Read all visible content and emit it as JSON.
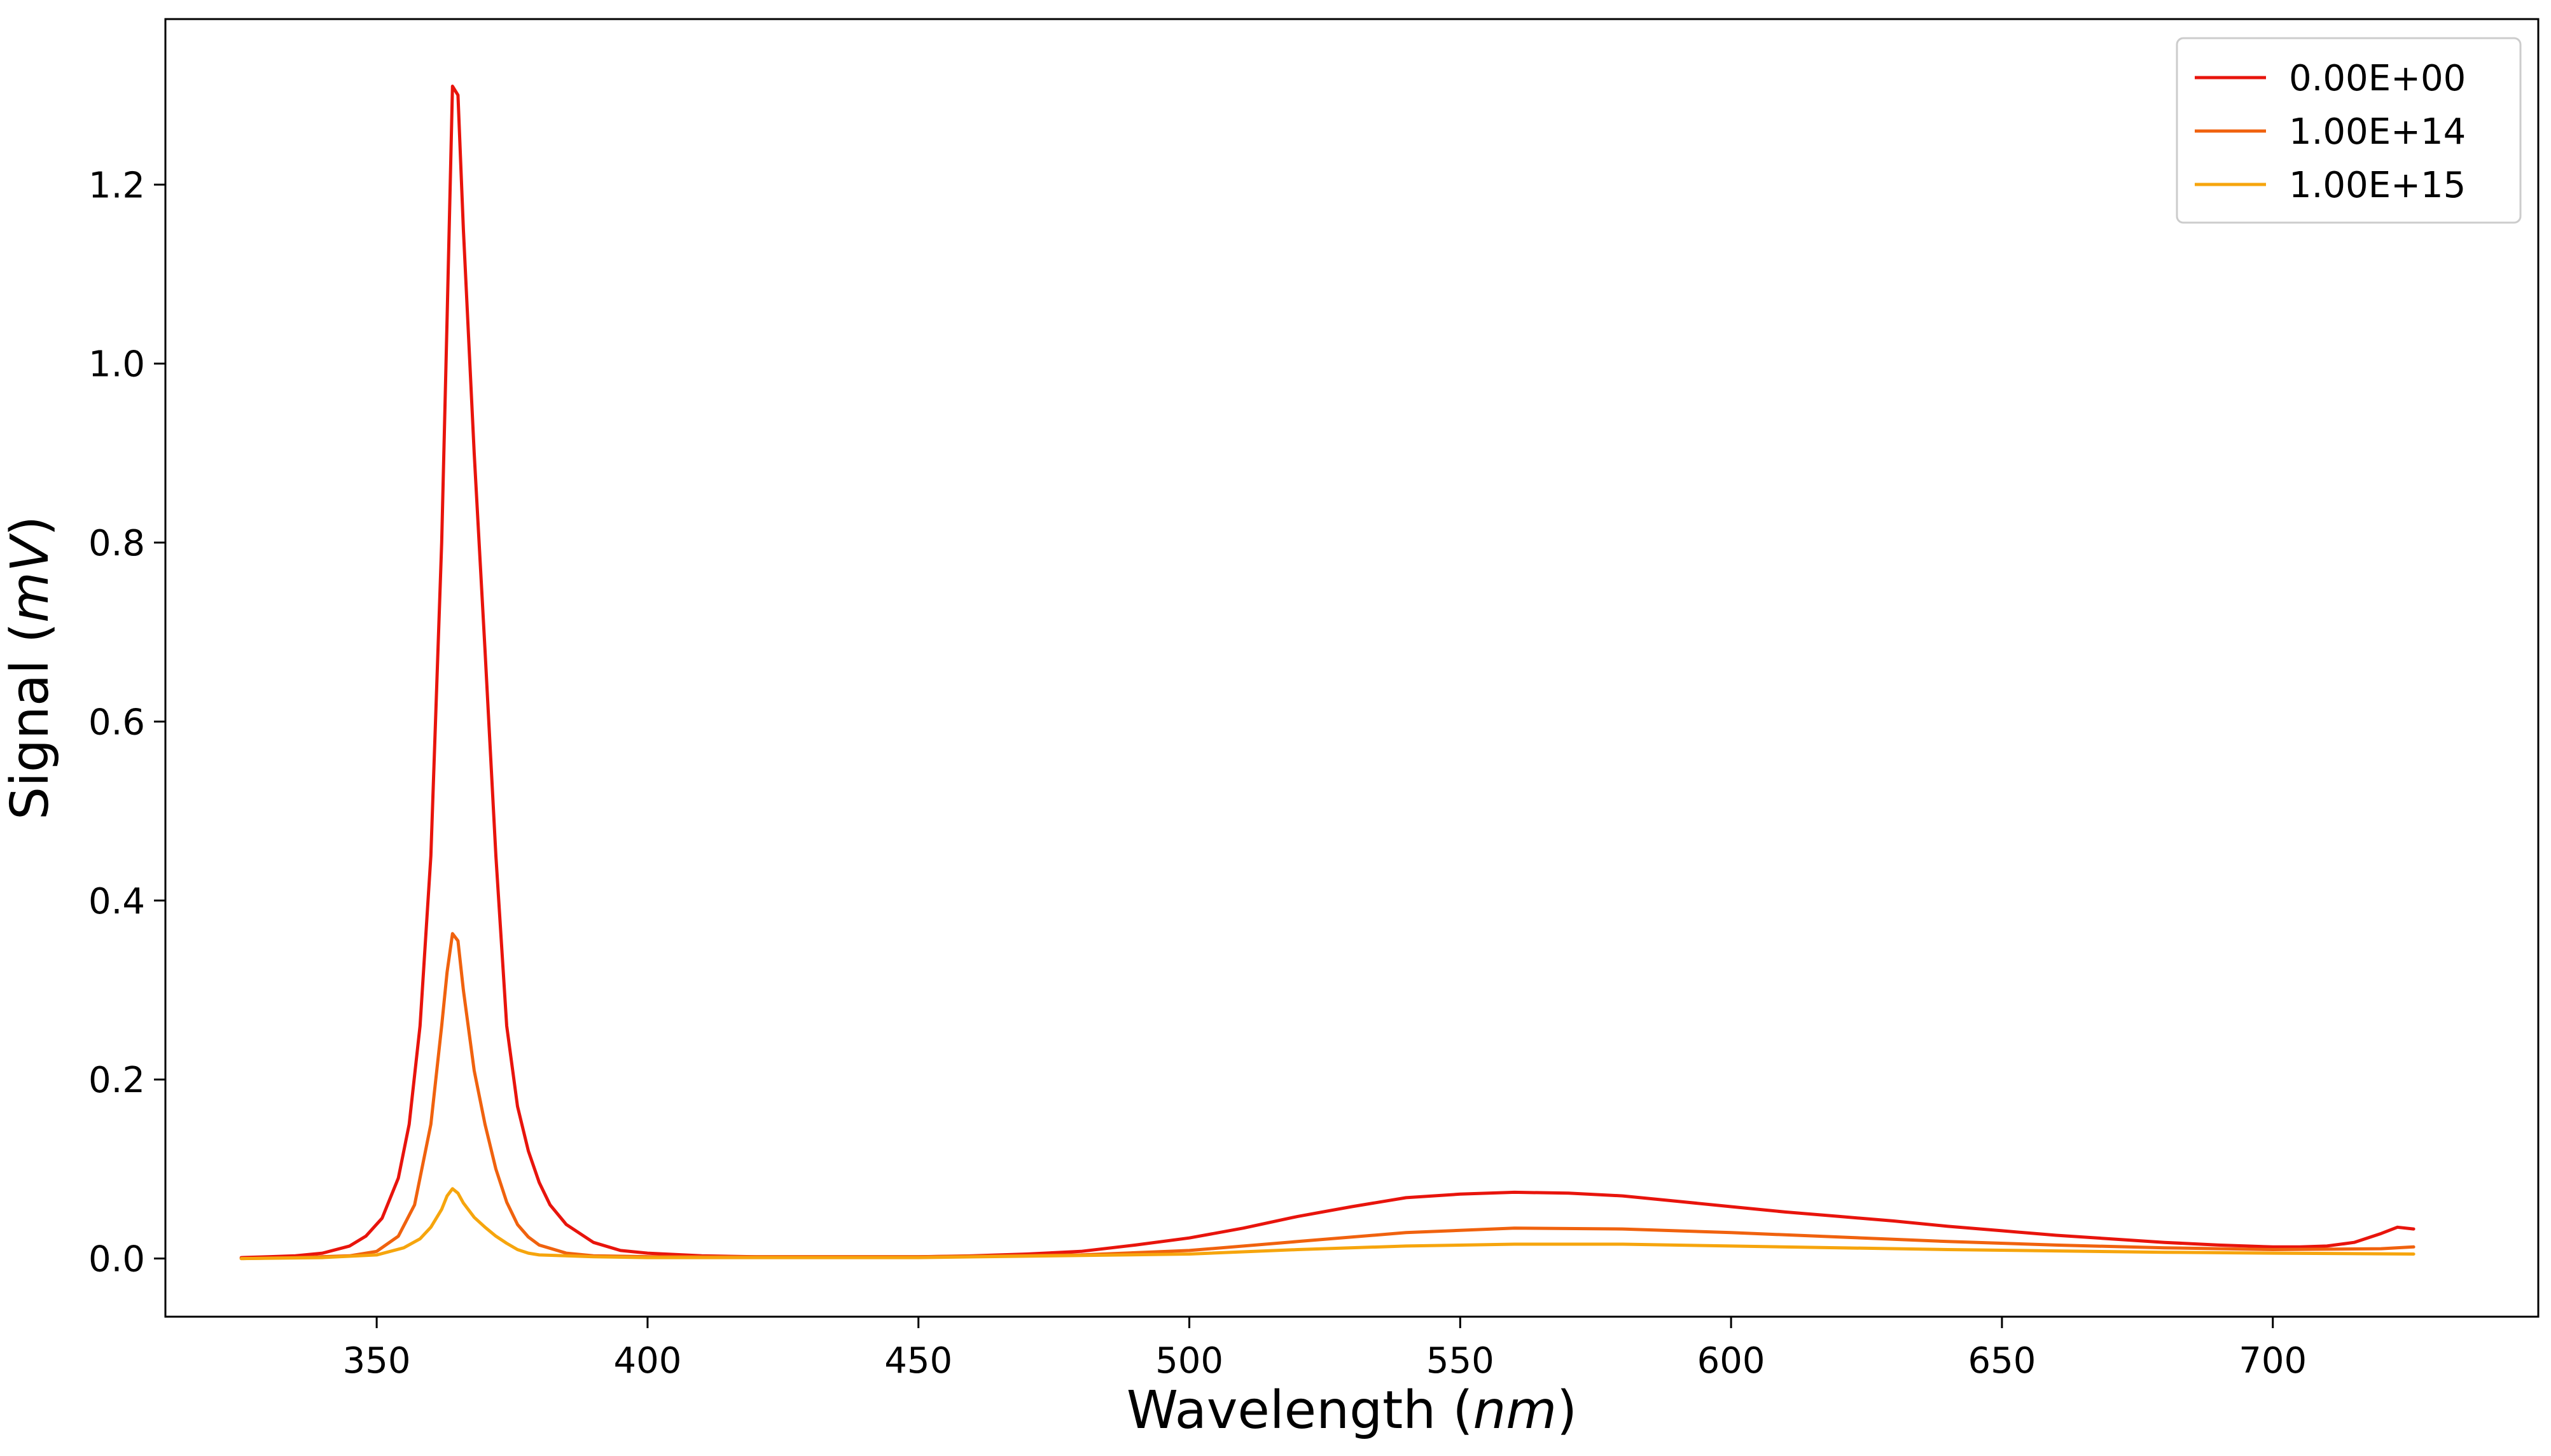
{
  "chart_data": {
    "type": "line",
    "xlabel": "Wavelength (nm)",
    "xlabel_parts": {
      "prefix": "Wavelength (",
      "unit": "nm",
      "suffix": ")"
    },
    "ylabel": "Signal (mV)",
    "ylabel_parts": {
      "prefix": "Signal (",
      "unit": "mV",
      "suffix": ")"
    },
    "xlim": [
      311,
      749
    ],
    "ylim": [
      -0.065,
      1.385
    ],
    "xticks": [
      350,
      400,
      450,
      500,
      550,
      600,
      650,
      700
    ],
    "yticks": [
      0.0,
      0.2,
      0.4,
      0.6,
      0.8,
      1.0,
      1.2
    ],
    "ytick_labels": [
      "0.0",
      "0.2",
      "0.4",
      "0.6",
      "0.8",
      "1.0",
      "1.2"
    ],
    "grid": false,
    "legend_position": "top-right",
    "series": [
      {
        "name": "0.00E+00",
        "color": "#e8140c",
        "x": [
          325,
          330,
          335,
          340,
          345,
          348,
          351,
          354,
          356,
          358,
          360,
          362,
          363,
          364,
          365,
          366,
          368,
          370,
          372,
          374,
          376,
          378,
          380,
          382,
          385,
          390,
          395,
          400,
          410,
          420,
          430,
          440,
          450,
          460,
          470,
          480,
          490,
          500,
          510,
          520,
          530,
          540,
          550,
          560,
          570,
          580,
          590,
          600,
          610,
          620,
          630,
          640,
          650,
          660,
          670,
          680,
          690,
          700,
          705,
          710,
          715,
          720,
          723,
          726
        ],
        "y": [
          0.001,
          0.002,
          0.003,
          0.006,
          0.014,
          0.025,
          0.045,
          0.09,
          0.15,
          0.26,
          0.45,
          0.8,
          1.05,
          1.31,
          1.3,
          1.15,
          0.9,
          0.68,
          0.45,
          0.26,
          0.17,
          0.12,
          0.085,
          0.06,
          0.038,
          0.018,
          0.009,
          0.006,
          0.003,
          0.002,
          0.002,
          0.002,
          0.002,
          0.003,
          0.005,
          0.008,
          0.015,
          0.023,
          0.034,
          0.047,
          0.058,
          0.068,
          0.072,
          0.074,
          0.073,
          0.07,
          0.064,
          0.058,
          0.052,
          0.047,
          0.042,
          0.036,
          0.031,
          0.026,
          0.022,
          0.018,
          0.015,
          0.013,
          0.013,
          0.014,
          0.018,
          0.028,
          0.035,
          0.033
        ]
      },
      {
        "name": "1.00E+14",
        "color": "#f0620e",
        "x": [
          325,
          335,
          345,
          350,
          354,
          357,
          360,
          362,
          363,
          364,
          365,
          366,
          368,
          370,
          372,
          374,
          376,
          378,
          380,
          385,
          390,
          400,
          450,
          480,
          500,
          520,
          540,
          560,
          580,
          600,
          620,
          640,
          660,
          680,
          700,
          720,
          726
        ],
        "y": [
          0.0,
          0.001,
          0.003,
          0.008,
          0.025,
          0.06,
          0.15,
          0.26,
          0.32,
          0.363,
          0.355,
          0.3,
          0.21,
          0.15,
          0.1,
          0.063,
          0.038,
          0.024,
          0.015,
          0.006,
          0.003,
          0.002,
          0.002,
          0.004,
          0.009,
          0.019,
          0.029,
          0.034,
          0.033,
          0.029,
          0.024,
          0.019,
          0.015,
          0.012,
          0.01,
          0.011,
          0.013
        ]
      },
      {
        "name": "1.00E+15",
        "color": "#f6a50d",
        "x": [
          325,
          340,
          350,
          355,
          358,
          360,
          362,
          363,
          364,
          365,
          366,
          368,
          370,
          372,
          374,
          376,
          378,
          380,
          390,
          400,
          450,
          500,
          520,
          540,
          560,
          580,
          600,
          640,
          680,
          700,
          726
        ],
        "y": [
          0.0,
          0.001,
          0.004,
          0.012,
          0.022,
          0.035,
          0.055,
          0.07,
          0.078,
          0.073,
          0.062,
          0.046,
          0.035,
          0.025,
          0.017,
          0.01,
          0.006,
          0.004,
          0.002,
          0.001,
          0.001,
          0.005,
          0.01,
          0.014,
          0.016,
          0.016,
          0.014,
          0.01,
          0.007,
          0.006,
          0.005
        ]
      }
    ]
  }
}
